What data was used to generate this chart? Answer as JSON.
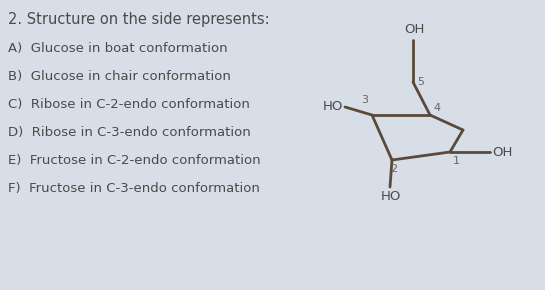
{
  "title_text": "2. Structure on the side represents:",
  "options": [
    "A)  Glucose in boat conformation",
    "B)  Glucose in chair conformation",
    "C)  Ribose in C-2-endo conformation",
    "D)  Ribose in C-3-endo conformation",
    "E)  Fructose in C-2-endo conformation",
    "F)  Fructose in C-3-endo conformation"
  ],
  "bg_color": "#d8dee8",
  "text_color": "#4a4a4a",
  "font_size": 9.5,
  "title_font_size": 10.5,
  "bond_color": "#5a4a3a",
  "label_color": "#666666"
}
